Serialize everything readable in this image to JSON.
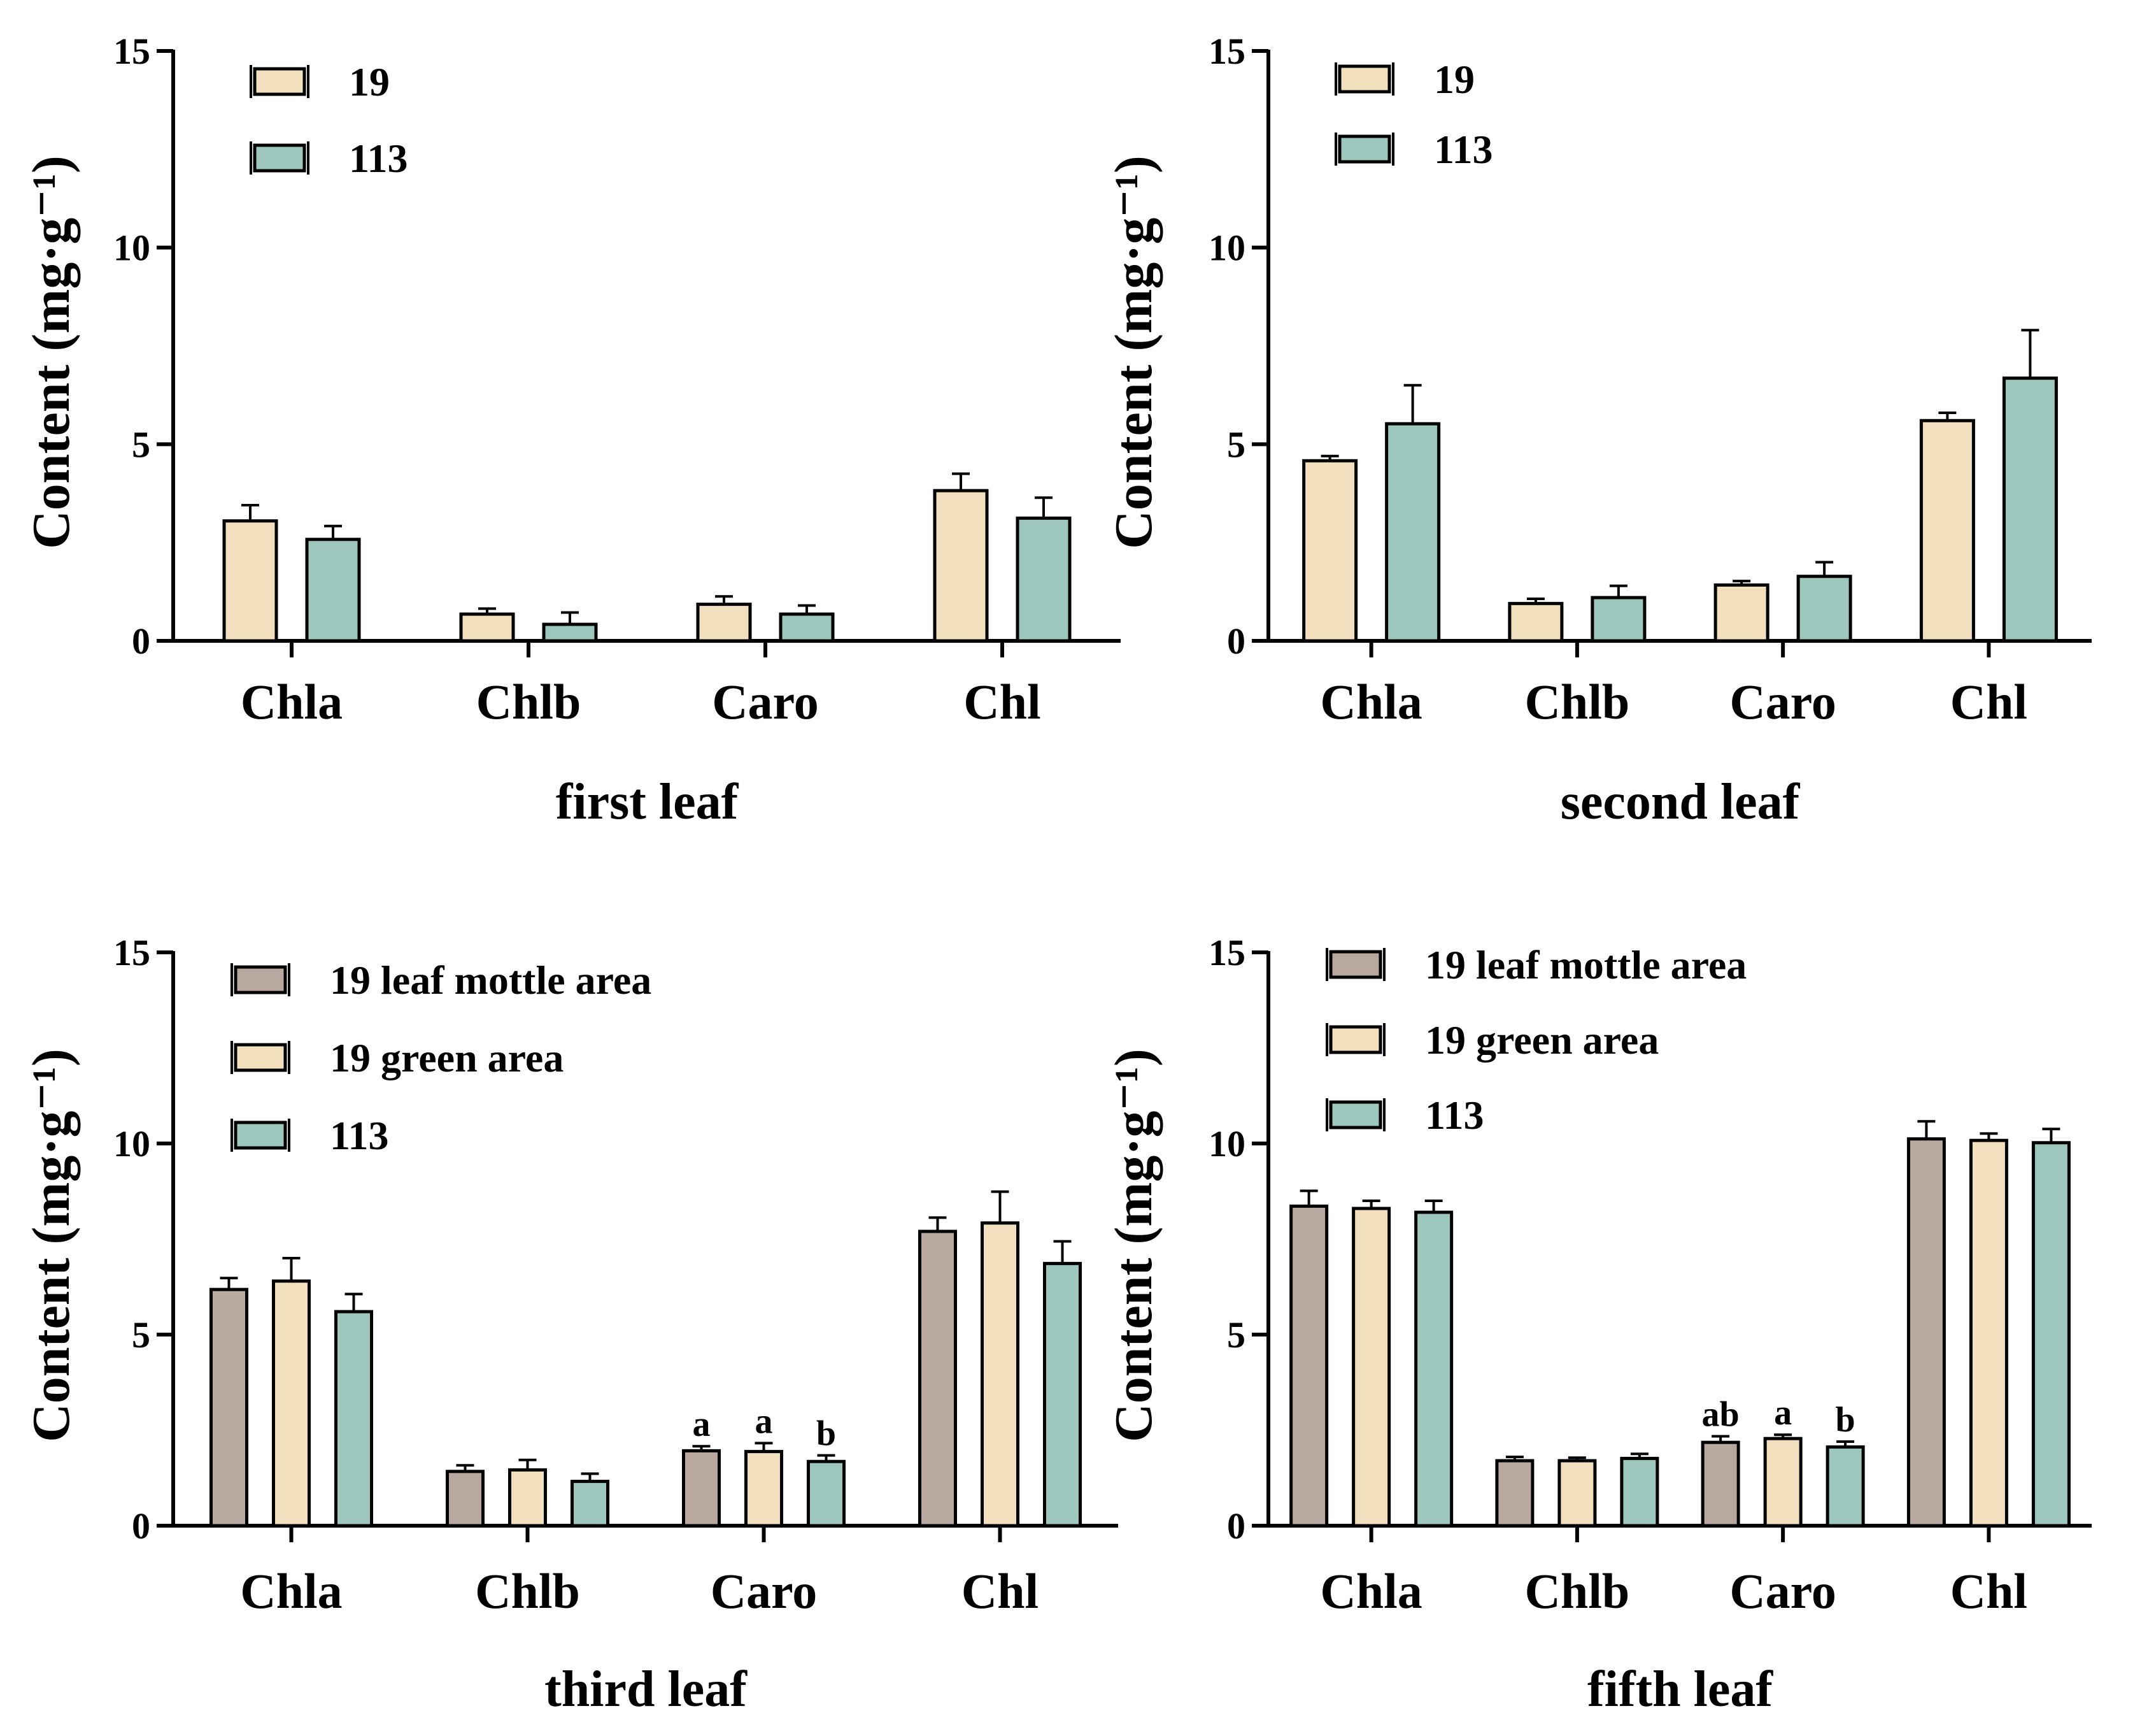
{
  "chart_data": [
    {
      "type": "bar",
      "title": "first leaf",
      "ylabel": "Content (mg·g⁻¹)",
      "ylim": [
        0,
        15
      ],
      "yticks": [
        "0",
        "5",
        "10",
        "15"
      ],
      "categories": [
        "Chla",
        "Chlb",
        "Caro",
        "Chl"
      ],
      "legend_position": "top-left",
      "series": [
        {
          "name": "19",
          "color": "#f2dfbe",
          "values": [
            3.05,
            0.68,
            0.93,
            3.82
          ],
          "errors": [
            0.4,
            0.14,
            0.2,
            0.43
          ]
        },
        {
          "name": "113",
          "color": "#9dc7bc",
          "values": [
            2.58,
            0.42,
            0.68,
            3.12
          ],
          "errors": [
            0.34,
            0.3,
            0.22,
            0.52
          ]
        }
      ],
      "letters": []
    },
    {
      "type": "bar",
      "title": "second leaf",
      "ylabel": "Content (mg·g⁻¹)",
      "ylim": [
        0,
        15
      ],
      "yticks": [
        "0",
        "5",
        "10",
        "15"
      ],
      "categories": [
        "Chla",
        "Chlb",
        "Caro",
        "Chl"
      ],
      "legend_position": "top-left",
      "series": [
        {
          "name": "19",
          "color": "#f2dfbe",
          "values": [
            4.58,
            0.95,
            1.42,
            5.6
          ],
          "errors": [
            0.12,
            0.12,
            0.1,
            0.2
          ]
        },
        {
          "name": "113",
          "color": "#9dc7bc",
          "values": [
            5.52,
            1.1,
            1.64,
            6.68
          ],
          "errors": [
            0.98,
            0.3,
            0.36,
            1.22
          ]
        }
      ],
      "letters": []
    },
    {
      "type": "bar",
      "title": "third leaf",
      "ylabel": "Content (mg·g⁻¹)",
      "ylim": [
        0,
        15
      ],
      "yticks": [
        "0",
        "5",
        "10",
        "15"
      ],
      "categories": [
        "Chla",
        "Chlb",
        "Caro",
        "Chl"
      ],
      "legend_position": "top-left",
      "series": [
        {
          "name": "19 leaf mottle area",
          "color": "#b8a8a0",
          "values": [
            6.18,
            1.42,
            1.96,
            7.7
          ],
          "errors": [
            0.3,
            0.16,
            0.12,
            0.36
          ]
        },
        {
          "name": "19 green area",
          "color": "#f2dfbe",
          "values": [
            6.4,
            1.46,
            1.94,
            7.92
          ],
          "errors": [
            0.6,
            0.26,
            0.22,
            0.82
          ]
        },
        {
          "name": "113",
          "color": "#9dc7bc",
          "values": [
            5.6,
            1.16,
            1.68,
            6.86
          ],
          "errors": [
            0.46,
            0.2,
            0.16,
            0.58
          ]
        }
      ],
      "letters": [
        {
          "category": "Caro",
          "series": 0,
          "text": "a"
        },
        {
          "category": "Caro",
          "series": 1,
          "text": "a"
        },
        {
          "category": "Caro",
          "series": 2,
          "text": "b"
        }
      ]
    },
    {
      "type": "bar",
      "title": "fifth leaf",
      "ylabel": "Content (mg·g⁻¹)",
      "ylim": [
        0,
        15
      ],
      "yticks": [
        "0",
        "5",
        "10",
        "15"
      ],
      "categories": [
        "Chla",
        "Chlb",
        "Caro",
        "Chl"
      ],
      "legend_position": "top-left",
      "series": [
        {
          "name": "19 leaf mottle area",
          "color": "#b8a8a0",
          "values": [
            8.36,
            1.7,
            2.18,
            10.12
          ],
          "errors": [
            0.4,
            0.1,
            0.16,
            0.46
          ]
        },
        {
          "name": "19 green area",
          "color": "#f2dfbe",
          "values": [
            8.3,
            1.7,
            2.28,
            10.08
          ],
          "errors": [
            0.2,
            0.08,
            0.1,
            0.18
          ]
        },
        {
          "name": "113",
          "color": "#9dc7bc",
          "values": [
            8.2,
            1.76,
            2.06,
            10.02
          ],
          "errors": [
            0.3,
            0.12,
            0.14,
            0.36
          ]
        }
      ],
      "letters": [
        {
          "category": "Caro",
          "series": 0,
          "text": "ab"
        },
        {
          "category": "Caro",
          "series": 1,
          "text": "a"
        },
        {
          "category": "Caro",
          "series": 2,
          "text": "b"
        }
      ]
    }
  ]
}
